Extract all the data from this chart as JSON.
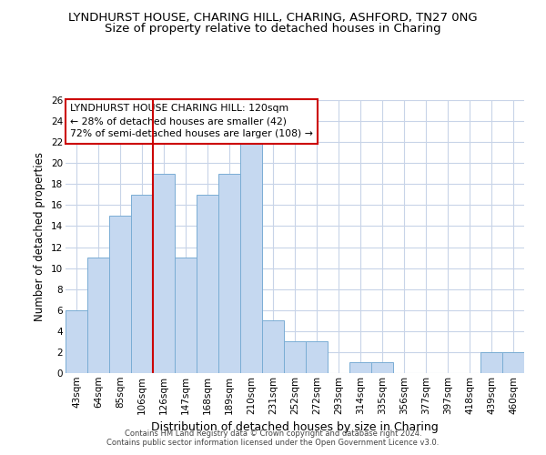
{
  "title": "LYNDHURST HOUSE, CHARING HILL, CHARING, ASHFORD, TN27 0NG",
  "subtitle": "Size of property relative to detached houses in Charing",
  "xlabel": "Distribution of detached houses by size in Charing",
  "ylabel": "Number of detached properties",
  "categories": [
    "43sqm",
    "64sqm",
    "85sqm",
    "106sqm",
    "126sqm",
    "147sqm",
    "168sqm",
    "189sqm",
    "210sqm",
    "231sqm",
    "252sqm",
    "272sqm",
    "293sqm",
    "314sqm",
    "335sqm",
    "356sqm",
    "377sqm",
    "397sqm",
    "418sqm",
    "439sqm",
    "460sqm"
  ],
  "values": [
    6,
    11,
    15,
    17,
    19,
    11,
    17,
    19,
    22,
    5,
    3,
    3,
    0,
    1,
    1,
    0,
    0,
    0,
    0,
    2,
    2
  ],
  "bar_color": "#c5d8f0",
  "bar_edge_color": "#7aadd4",
  "vline_x_index": 4,
  "vline_color": "#cc0000",
  "ylim": [
    0,
    26
  ],
  "yticks": [
    0,
    2,
    4,
    6,
    8,
    10,
    12,
    14,
    16,
    18,
    20,
    22,
    24,
    26
  ],
  "annotation_text": "LYNDHURST HOUSE CHARING HILL: 120sqm\n← 28% of detached houses are smaller (42)\n72% of semi-detached houses are larger (108) →",
  "annotation_box_color": "#ffffff",
  "annotation_box_edge": "#cc0000",
  "footer1": "Contains HM Land Registry data © Crown copyright and database right 2024.",
  "footer2": "Contains public sector information licensed under the Open Government Licence v3.0.",
  "background_color": "#ffffff",
  "grid_color": "#c8d4e8",
  "title_fontsize": 9.5,
  "subtitle_fontsize": 9.5,
  "tick_fontsize": 7.5,
  "ylabel_fontsize": 8.5,
  "xlabel_fontsize": 9,
  "annotation_fontsize": 7.8,
  "footer_fontsize": 6.0
}
